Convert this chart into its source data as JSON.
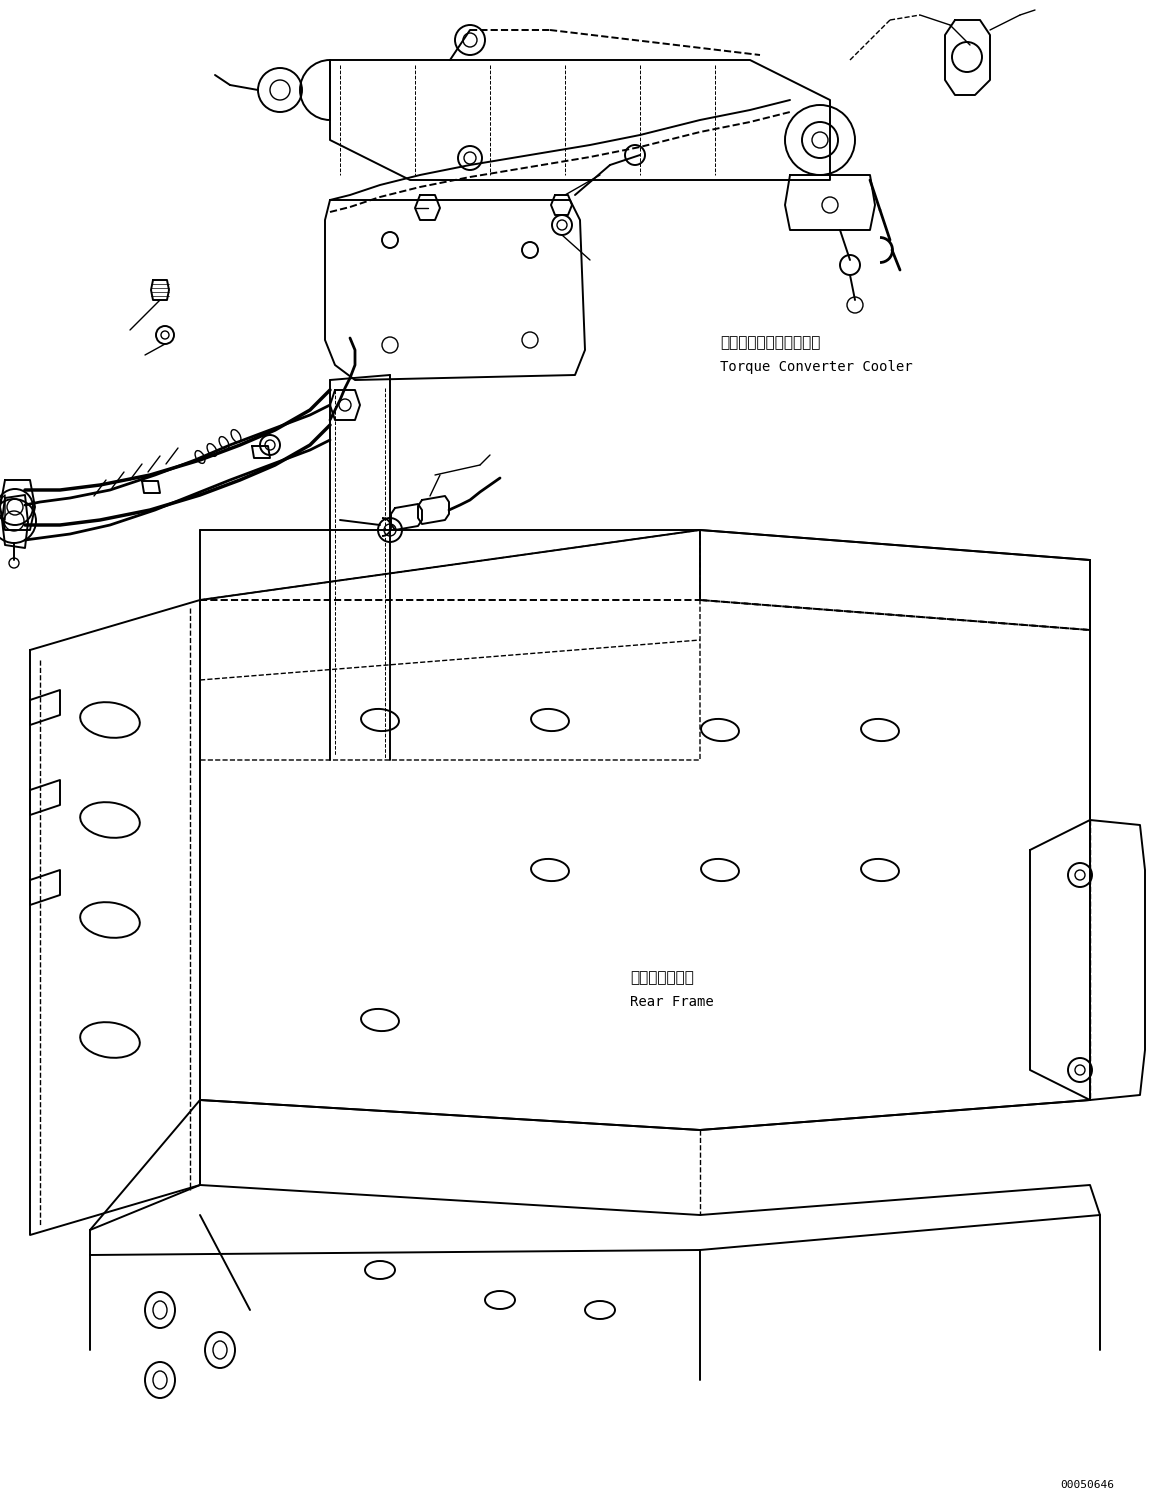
{
  "background_color": "#ffffff",
  "line_color": "#000000",
  "figure_width": 11.63,
  "figure_height": 14.91,
  "dpi": 100,
  "annotation_torque_converter_jp": "トルクコンバータクーラ",
  "annotation_torque_converter_en": "Torque Converter Cooler",
  "annotation_rear_frame_jp": "リヤーフレーム",
  "annotation_rear_frame_en": "Rear Frame",
  "part_number": "00050646",
  "font_size_label": 11,
  "font_size_part": 8
}
